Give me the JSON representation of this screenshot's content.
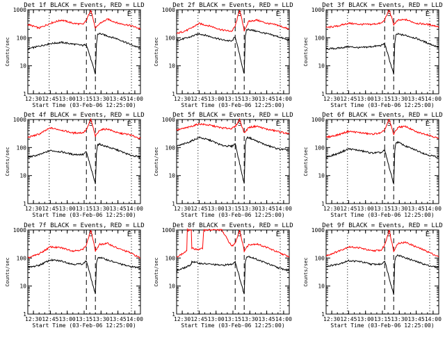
{
  "colors": {
    "events": "#000000",
    "lld": "#ff0000",
    "axes": "#000000",
    "background": "#ffffff"
  },
  "chart_data": [
    {
      "type": "line",
      "title": "Det 1f BLACK = Events, RED = LLD",
      "xlabel": "Start Time (03-Feb-06 12:25:00)",
      "ylabel": "Counts/sec",
      "y_scale": "log",
      "ylim": [
        1,
        1000
      ],
      "y_ticks": [
        "1",
        "10",
        "100",
        "1000"
      ],
      "xlim": [
        "12:25",
        "14:05"
      ],
      "x_ticks": [
        "12:30",
        "12:45",
        "13:00",
        "13:15",
        "13:30",
        "13:45",
        "14:00"
      ],
      "markers": {
        "S": "13:21",
        "E": "13:55"
      },
      "vlines_dashed": [
        "13:17",
        "13:25"
      ],
      "vlines_dotted": [
        "12:44",
        "13:57"
      ],
      "series": [
        {
          "key": "lld",
          "x": [
            "12:25",
            "12:35",
            "12:45",
            "12:55",
            "13:05",
            "13:14",
            "13:17",
            "13:21",
            "13:25",
            "13:29",
            "13:36",
            "13:45",
            "13:55",
            "14:05"
          ],
          "y": [
            300,
            220,
            330,
            430,
            330,
            300,
            420,
            1000,
            210,
            330,
            460,
            330,
            280,
            210
          ]
        },
        {
          "key": "events",
          "x": [
            "12:25",
            "12:35",
            "12:45",
            "12:55",
            "13:05",
            "13:14",
            "13:17",
            "13:25",
            "13:26",
            "13:27",
            "13:29",
            "13:36",
            "13:45",
            "13:55",
            "14:05"
          ],
          "y": [
            40,
            50,
            62,
            68,
            60,
            53,
            58,
            5,
            60,
            135,
            140,
            115,
            90,
            60,
            42
          ]
        }
      ]
    },
    {
      "type": "line",
      "title": "Det 2f BLACK = Events, RED = LLD",
      "xlabel": "Start Time (03-Feb-06 12:25:00)",
      "ylabel": "Counts/sec",
      "y_scale": "log",
      "ylim": [
        1,
        1000
      ],
      "y_ticks": [
        "1",
        "10",
        "100",
        "1000"
      ],
      "xlim": [
        "12:25",
        "14:05"
      ],
      "x_ticks": [
        "12:30",
        "12:45",
        "13:00",
        "13:15",
        "13:30",
        "13:45",
        "14:00"
      ],
      "markers": {
        "S": "13:21",
        "E": "13:55"
      },
      "vlines_dashed": [
        "13:17",
        "13:25"
      ],
      "vlines_dotted": [
        "12:44",
        "13:57"
      ],
      "series": [
        {
          "key": "lld",
          "x": [
            "12:25",
            "12:35",
            "12:45",
            "12:55",
            "13:05",
            "13:14",
            "13:17",
            "13:21",
            "13:25",
            "13:29",
            "13:36",
            "13:45",
            "13:55",
            "14:05"
          ],
          "y": [
            140,
            190,
            320,
            260,
            190,
            170,
            260,
            1000,
            180,
            380,
            430,
            330,
            280,
            200
          ]
        },
        {
          "key": "events",
          "x": [
            "12:25",
            "12:35",
            "12:45",
            "12:55",
            "13:05",
            "13:14",
            "13:17",
            "13:25",
            "13:26",
            "13:27",
            "13:29",
            "13:36",
            "13:45",
            "13:55",
            "14:05"
          ],
          "y": [
            80,
            100,
            140,
            110,
            85,
            75,
            110,
            5,
            110,
            190,
            200,
            170,
            140,
            110,
            80
          ]
        }
      ]
    },
    {
      "type": "line",
      "title": "Det 3f BLACK = Events, RED = LLD",
      "xlabel": "Start Time (03-Feb-06 12:25:00)",
      "ylabel": "Counts/sec",
      "y_scale": "log",
      "ylim": [
        1,
        1000
      ],
      "y_ticks": [
        "1",
        "10",
        "100",
        "1000"
      ],
      "xlim": [
        "12:25",
        "14:05"
      ],
      "x_ticks": [
        "12:30",
        "12:45",
        "13:00",
        "13:15",
        "13:30",
        "13:45",
        "14:00"
      ],
      "markers": {
        "S": "13:21",
        "E": "13:55"
      },
      "vlines_dashed": [
        "13:17",
        "13:25"
      ],
      "vlines_dotted": [
        "12:44",
        "13:57"
      ],
      "series": [
        {
          "key": "lld",
          "x": [
            "12:25",
            "12:35",
            "12:45",
            "12:55",
            "13:05",
            "13:14",
            "13:17",
            "13:21",
            "13:25",
            "13:29",
            "13:36",
            "13:45",
            "13:55",
            "14:05"
          ],
          "y": [
            230,
            260,
            330,
            300,
            300,
            330,
            430,
            1000,
            300,
            420,
            440,
            330,
            300,
            250
          ]
        },
        {
          "key": "events",
          "x": [
            "12:25",
            "12:35",
            "12:45",
            "12:55",
            "13:05",
            "13:14",
            "13:17",
            "13:25",
            "13:26",
            "13:27",
            "13:29",
            "13:36",
            "13:45",
            "13:55",
            "14:05"
          ],
          "y": [
            40,
            42,
            48,
            44,
            48,
            53,
            62,
            5,
            60,
            130,
            135,
            120,
            95,
            65,
            45
          ]
        }
      ]
    },
    {
      "type": "line",
      "title": "Det 4f BLACK = Events, RED = LLD",
      "xlabel": "Start Time (03-Feb-06 12:25:00)",
      "ylabel": "Counts/sec",
      "y_scale": "log",
      "ylim": [
        1,
        1000
      ],
      "y_ticks": [
        "1",
        "10",
        "100",
        "1000"
      ],
      "xlim": [
        "12:25",
        "14:05"
      ],
      "x_ticks": [
        "12:30",
        "12:45",
        "13:00",
        "13:15",
        "13:30",
        "13:45",
        "14:00"
      ],
      "markers": {
        "S": "13:21",
        "E": "13:55"
      },
      "vlines_dashed": [
        "13:17",
        "13:25"
      ],
      "vlines_dotted": [
        "12:44",
        "13:57"
      ],
      "series": [
        {
          "key": "lld",
          "x": [
            "12:25",
            "12:35",
            "12:45",
            "12:55",
            "13:05",
            "13:14",
            "13:17",
            "13:21",
            "13:25",
            "13:29",
            "13:36",
            "13:45",
            "13:55",
            "14:05"
          ],
          "y": [
            230,
            300,
            500,
            420,
            330,
            340,
            430,
            1000,
            250,
            430,
            460,
            330,
            290,
            210
          ]
        },
        {
          "key": "events",
          "x": [
            "12:25",
            "12:35",
            "12:45",
            "12:55",
            "13:05",
            "13:14",
            "13:17",
            "13:25",
            "13:26",
            "13:27",
            "13:29",
            "13:36",
            "13:45",
            "13:55",
            "14:05"
          ],
          "y": [
            45,
            55,
            78,
            70,
            57,
            56,
            70,
            5,
            70,
            125,
            130,
            105,
            80,
            55,
            45
          ]
        }
      ]
    },
    {
      "type": "line",
      "title": "Det 5f BLACK = Events, RED = LLD",
      "xlabel": "Start Time (03-Feb-06 12:25:00)",
      "ylabel": "Counts/sec",
      "y_scale": "log",
      "ylim": [
        1,
        1000
      ],
      "y_ticks": [
        "1",
        "10",
        "100",
        "1000"
      ],
      "xlim": [
        "12:25",
        "14:05"
      ],
      "x_ticks": [
        "12:30",
        "12:45",
        "13:00",
        "13:15",
        "13:30",
        "13:45",
        "14:00"
      ],
      "markers": {
        "S": "13:21",
        "E": "13:55"
      },
      "vlines_dashed": [
        "13:17",
        "13:25"
      ],
      "vlines_dotted": [
        "12:44",
        "13:57"
      ],
      "series": [
        {
          "key": "lld",
          "x": [
            "12:25",
            "12:35",
            "12:45",
            "12:55",
            "13:05",
            "13:14",
            "13:17",
            "13:21",
            "13:25",
            "13:29",
            "13:36",
            "13:45",
            "13:55",
            "14:05"
          ],
          "y": [
            420,
            520,
            700,
            620,
            500,
            480,
            560,
            1000,
            330,
            520,
            580,
            450,
            380,
            300
          ]
        },
        {
          "key": "events",
          "x": [
            "12:25",
            "12:35",
            "12:45",
            "12:55",
            "13:05",
            "13:14",
            "13:17",
            "13:25",
            "13:26",
            "13:27",
            "13:29",
            "13:36",
            "13:45",
            "13:55",
            "14:05"
          ],
          "y": [
            110,
            150,
            230,
            180,
            120,
            110,
            140,
            5,
            130,
            220,
            230,
            170,
            120,
            90,
            80
          ]
        }
      ]
    },
    {
      "type": "line",
      "title": "Det 6f BLACK = Events, RED = LLD",
      "xlabel": "Start Time (03-Feb-06 12:25:00)",
      "ylabel": "Counts/sec",
      "y_scale": "log",
      "ylim": [
        1,
        1000
      ],
      "y_ticks": [
        "1",
        "10",
        "100",
        "1000"
      ],
      "xlim": [
        "12:25",
        "14:05"
      ],
      "x_ticks": [
        "12:30",
        "12:45",
        "13:00",
        "13:15",
        "13:30",
        "13:45",
        "14:00"
      ],
      "markers": {
        "S": "13:21",
        "E": "13:55"
      },
      "vlines_dashed": [
        "13:17",
        "13:25"
      ],
      "vlines_dotted": [
        "12:44",
        "13:57"
      ],
      "series": [
        {
          "key": "lld",
          "x": [
            "12:25",
            "12:35",
            "12:45",
            "12:55",
            "13:05",
            "13:14",
            "13:17",
            "13:21",
            "13:25",
            "13:29",
            "13:36",
            "13:45",
            "13:55",
            "14:05"
          ],
          "y": [
            230,
            280,
            380,
            340,
            300,
            330,
            430,
            1000,
            300,
            540,
            560,
            360,
            290,
            210
          ]
        },
        {
          "key": "events",
          "x": [
            "12:25",
            "12:35",
            "12:45",
            "12:55",
            "13:05",
            "13:14",
            "13:17",
            "13:25",
            "13:26",
            "13:27",
            "13:29",
            "13:36",
            "13:45",
            "13:55",
            "14:05"
          ],
          "y": [
            45,
            60,
            90,
            78,
            64,
            66,
            80,
            5,
            75,
            150,
            155,
            110,
            80,
            55,
            45
          ]
        }
      ]
    },
    {
      "type": "line",
      "title": "Det 7f BLACK = Events, RED = LLD",
      "xlabel": "Start Time (03-Feb-06 12:25:00)",
      "ylabel": "Counts/sec",
      "y_scale": "log",
      "ylim": [
        1,
        1000
      ],
      "y_ticks": [
        "1",
        "10",
        "100",
        "1000"
      ],
      "xlim": [
        "12:25",
        "14:05"
      ],
      "x_ticks": [
        "12:30",
        "12:45",
        "13:00",
        "13:15",
        "13:30",
        "13:45",
        "14:00"
      ],
      "markers": {
        "S": "13:21",
        "E": "13:55"
      },
      "vlines_dashed": [
        "13:17",
        "13:25"
      ],
      "vlines_dotted": [
        "12:44",
        "13:57"
      ],
      "series": [
        {
          "key": "lld",
          "x": [
            "12:25",
            "12:35",
            "12:45",
            "12:55",
            "13:05",
            "13:14",
            "13:17",
            "13:21",
            "13:25",
            "13:29",
            "13:36",
            "13:45",
            "13:55",
            "14:05"
          ],
          "y": [
            100,
            140,
            250,
            230,
            180,
            200,
            300,
            1000,
            180,
            310,
            330,
            220,
            160,
            100
          ]
        },
        {
          "key": "events",
          "x": [
            "12:25",
            "12:35",
            "12:45",
            "12:55",
            "13:05",
            "13:14",
            "13:17",
            "13:25",
            "13:26",
            "13:27",
            "13:29",
            "13:36",
            "13:45",
            "13:55",
            "14:05"
          ],
          "y": [
            45,
            55,
            85,
            78,
            60,
            62,
            80,
            5,
            70,
            100,
            105,
            85,
            65,
            50,
            45
          ]
        }
      ]
    },
    {
      "type": "line",
      "title": "Det 8f BLACK = Events, RED = LLD",
      "xlabel": "Start Time (03-Feb-06 12:25:00)",
      "ylabel": "Counts/sec",
      "y_scale": "log",
      "ylim": [
        1,
        1000
      ],
      "y_ticks": [
        "1",
        "10",
        "100",
        "1000"
      ],
      "xlim": [
        "12:25",
        "14:05"
      ],
      "x_ticks": [
        "12:30",
        "12:45",
        "13:00",
        "13:15",
        "13:30",
        "13:45",
        "14:00"
      ],
      "markers": {
        "S": "13:21",
        "E": "13:55"
      },
      "vlines_dashed": [
        "13:17",
        "13:25"
      ],
      "vlines_dotted": [
        "12:44",
        "13:57"
      ],
      "series": [
        {
          "key": "lld",
          "x": [
            "12:25",
            "12:30",
            "12:34",
            "12:34.5",
            "12:38",
            "12:38.5",
            "12:45",
            "12:48",
            "12:49",
            "13:05",
            "13:14",
            "13:17",
            "13:21",
            "13:25",
            "13:29",
            "13:36",
            "13:45",
            "13:55",
            "14:05"
          ],
          "y": [
            110,
            140,
            180,
            1000,
            1000,
            220,
            200,
            220,
            1000,
            1000,
            260,
            340,
            1000,
            180,
            300,
            320,
            240,
            160,
            110
          ]
        },
        {
          "key": "events",
          "x": [
            "12:25",
            "12:35",
            "12:38",
            "12:38.5",
            "12:45",
            "12:55",
            "13:05",
            "13:14",
            "13:17",
            "13:25",
            "13:26",
            "13:27",
            "13:29",
            "13:36",
            "13:45",
            "13:55",
            "14:05"
          ],
          "y": [
            35,
            50,
            60,
            75,
            65,
            60,
            55,
            60,
            75,
            5,
            75,
            110,
            115,
            90,
            65,
            45,
            35
          ]
        }
      ]
    },
    {
      "type": "line",
      "title": "Det 9f BLACK = Events, RED = LLD",
      "xlabel": "Start Time (03-Feb-06 12:25:00)",
      "ylabel": "Counts/sec",
      "y_scale": "log",
      "ylim": [
        1,
        1000
      ],
      "y_ticks": [
        "1",
        "10",
        "100",
        "1000"
      ],
      "xlim": [
        "12:25",
        "14:05"
      ],
      "x_ticks": [
        "12:30",
        "12:45",
        "13:00",
        "13:15",
        "13:30",
        "13:45",
        "14:00"
      ],
      "markers": {
        "S": "13:21",
        "E": "13:55"
      },
      "vlines_dashed": [
        "13:17",
        "13:25"
      ],
      "vlines_dotted": [
        "12:44",
        "13:57"
      ],
      "series": [
        {
          "key": "lld",
          "x": [
            "12:25",
            "12:35",
            "12:45",
            "12:55",
            "13:05",
            "13:14",
            "13:17",
            "13:21",
            "13:25",
            "13:29",
            "13:36",
            "13:45",
            "13:55",
            "14:05"
          ],
          "y": [
            120,
            170,
            250,
            230,
            180,
            190,
            290,
            1000,
            180,
            340,
            360,
            250,
            170,
            110
          ]
        },
        {
          "key": "events",
          "x": [
            "12:25",
            "12:35",
            "12:45",
            "12:55",
            "13:05",
            "13:14",
            "13:17",
            "13:25",
            "13:26",
            "13:27",
            "13:29",
            "13:36",
            "13:45",
            "13:55",
            "14:05"
          ],
          "y": [
            50,
            60,
            80,
            75,
            60,
            60,
            80,
            5,
            75,
            120,
            125,
            100,
            75,
            55,
            45
          ]
        }
      ]
    }
  ]
}
